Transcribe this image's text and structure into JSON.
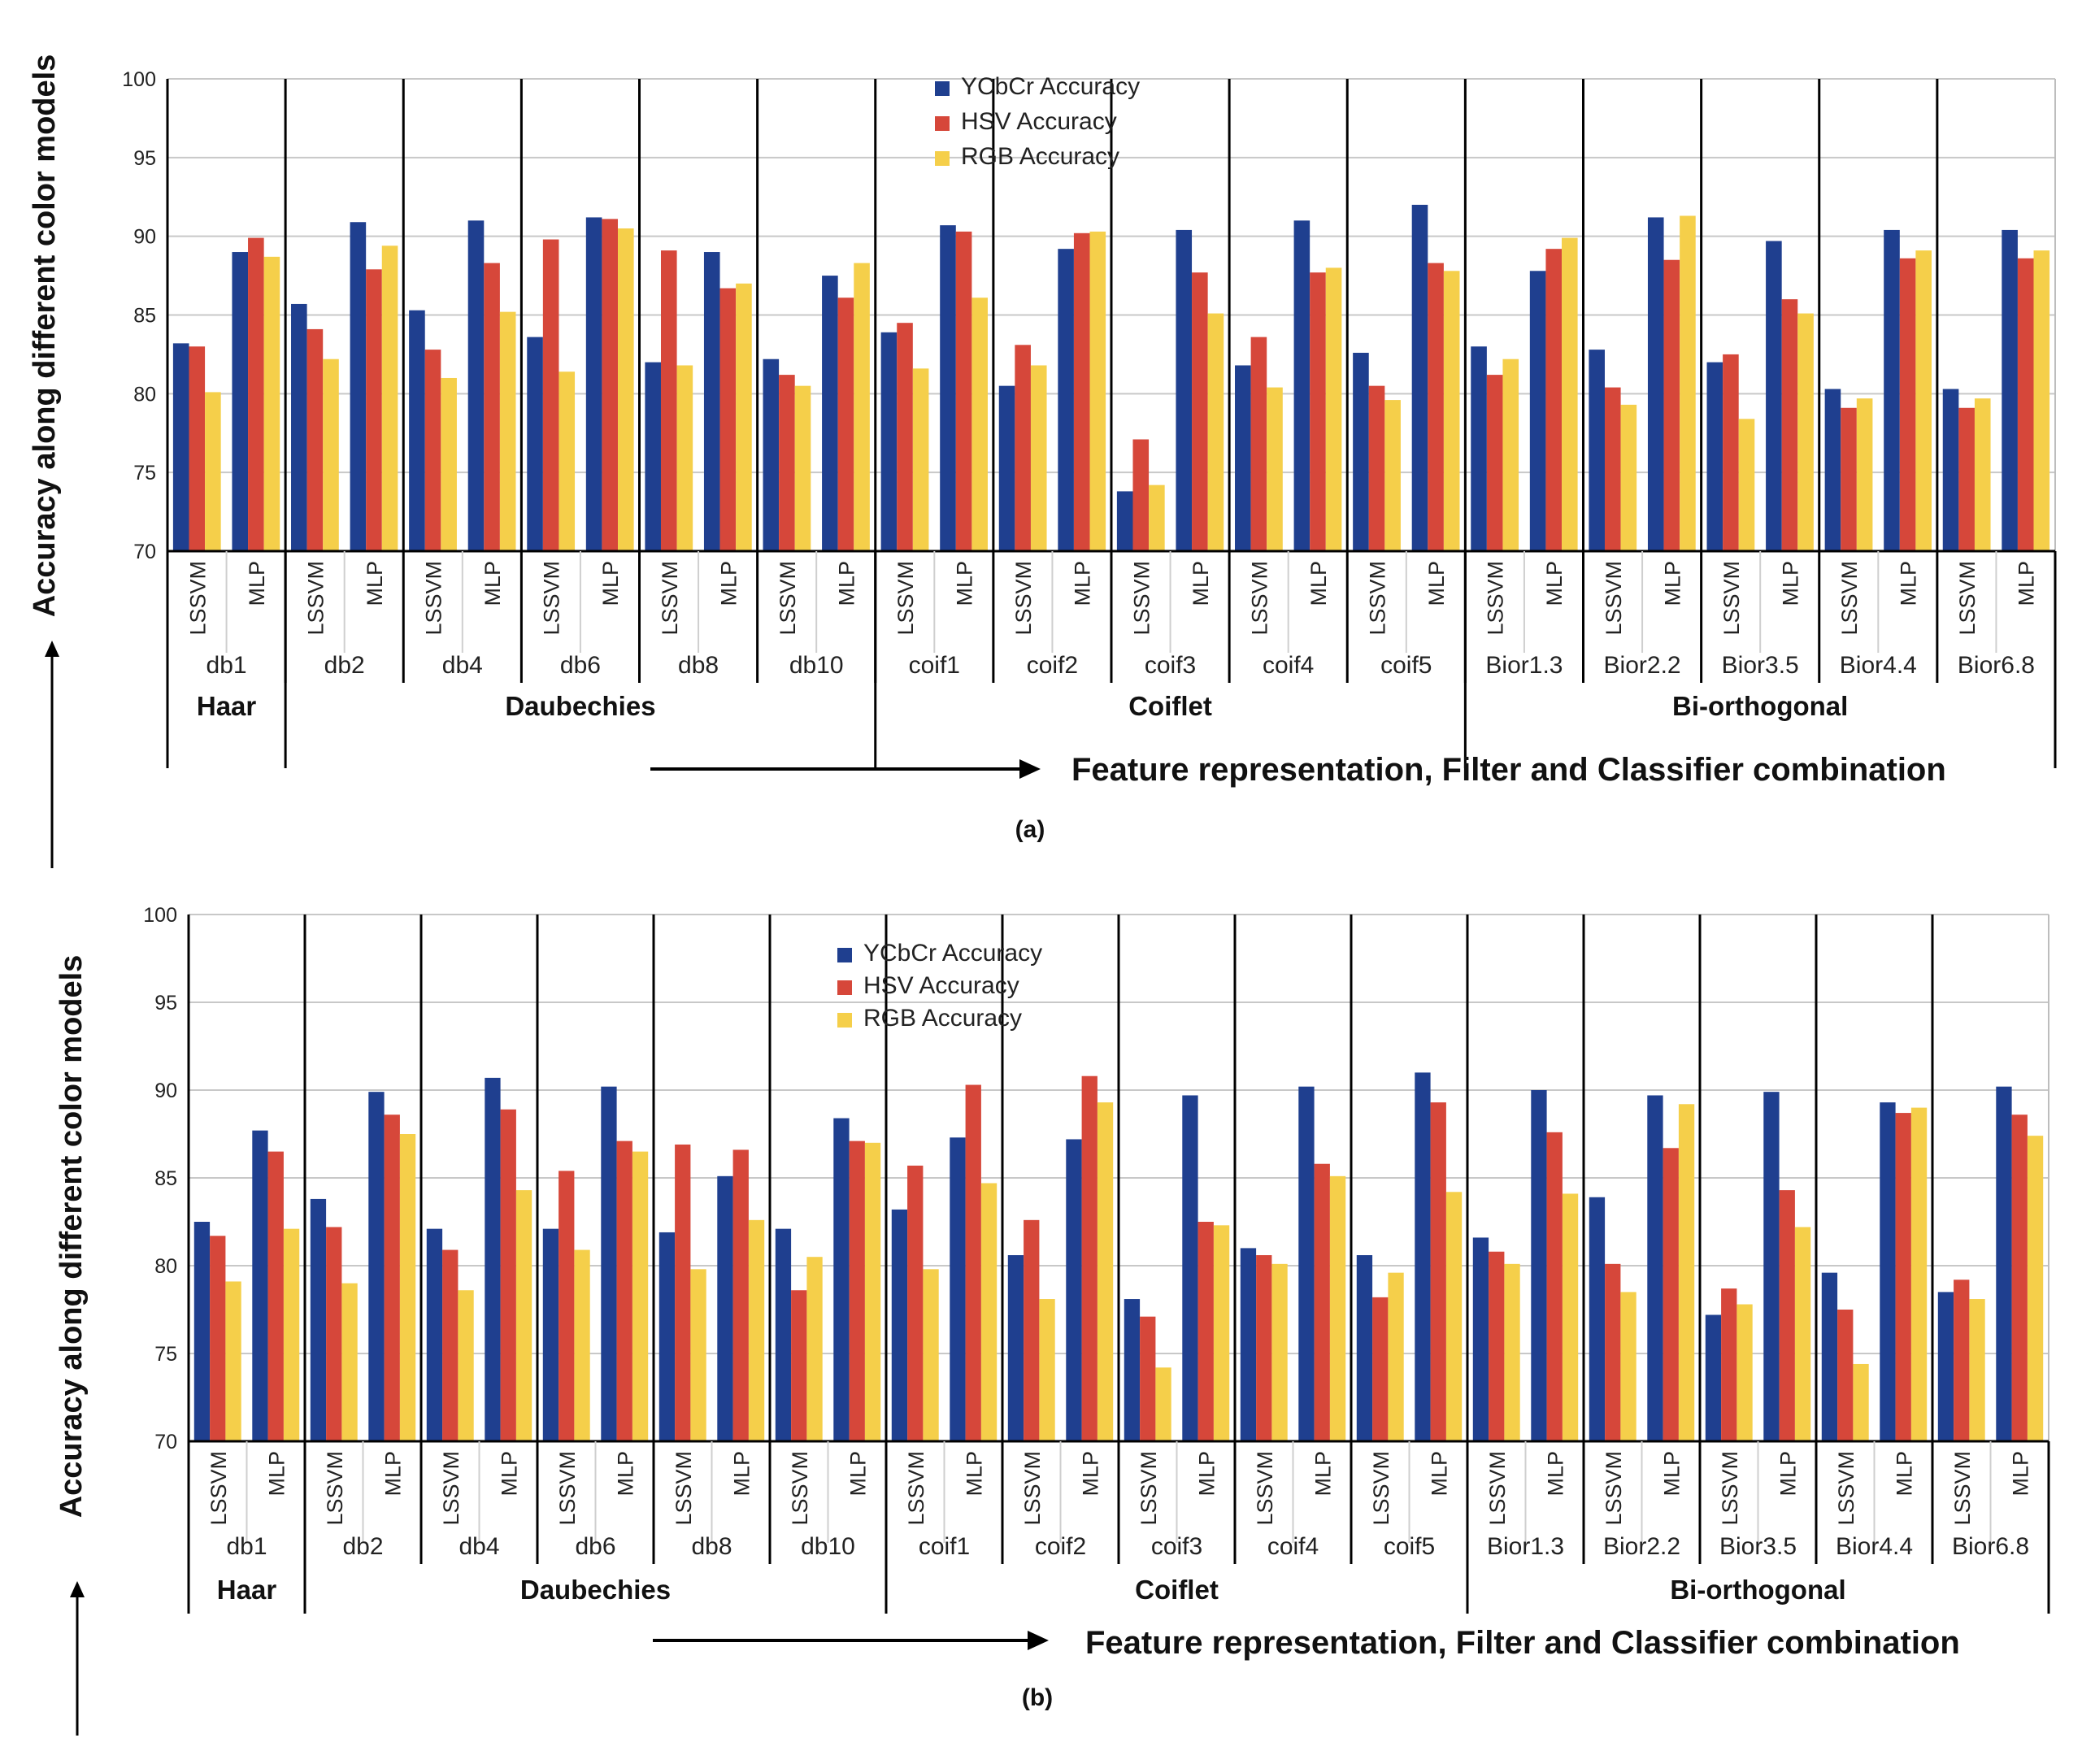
{
  "figure_label": "accuracy-comparison",
  "colors": {
    "YCbCr": "#1f3f8f",
    "HSV": "#d6473a",
    "RGB": "#f5cf4a",
    "grid": "#c8c8c8",
    "axis": "#000000"
  },
  "chart_data": [
    {
      "type": "bar",
      "caption": "(a)",
      "ylabel": "Accuracy along different color models",
      "xlabel": "Feature representation, Filter and Classifier combination",
      "ylim": [
        70,
        100
      ],
      "yticks": [
        70,
        75,
        80,
        85,
        90,
        95,
        100
      ],
      "legend": [
        "YCbCr Accuracy",
        "HSV Accuracy",
        "RGB Accuracy"
      ],
      "legend_position": "top-center",
      "classifiers": [
        "LSSVM",
        "MLP"
      ],
      "filters": [
        "db1",
        "db2",
        "db4",
        "db6",
        "db8",
        "db10",
        "coif1",
        "coif2",
        "coif3",
        "coif4",
        "coif5",
        "Bior1.3",
        "Bior2.2",
        "Bior3.5",
        "Bior4.4",
        "Bior6.8"
      ],
      "families": [
        {
          "name": "Haar",
          "start": 0,
          "count": 1
        },
        {
          "name": "Daubechies",
          "start": 1,
          "count": 5
        },
        {
          "name": "Coiflet",
          "start": 6,
          "count": 5
        },
        {
          "name": "Bi-orthogonal",
          "start": 11,
          "count": 5
        }
      ],
      "series": [
        {
          "name": "YCbCr Accuracy",
          "values": [
            83.2,
            89.0,
            85.7,
            90.9,
            85.3,
            91.0,
            83.6,
            91.2,
            82.0,
            89.0,
            82.2,
            87.5,
            83.9,
            90.7,
            80.5,
            89.2,
            73.8,
            90.4,
            81.8,
            91.0,
            82.6,
            92.0,
            83.0,
            87.8,
            82.8,
            91.2,
            82.0,
            89.7,
            80.3,
            90.4,
            80.3,
            90.4
          ]
        },
        {
          "name": "HSV Accuracy",
          "values": [
            83.0,
            89.9,
            84.1,
            87.9,
            82.8,
            88.3,
            89.8,
            91.1,
            89.1,
            86.7,
            81.2,
            86.1,
            84.5,
            90.3,
            83.1,
            90.2,
            77.1,
            87.7,
            83.6,
            87.7,
            80.5,
            88.3,
            81.2,
            89.2,
            80.4,
            88.5,
            82.5,
            86.0,
            79.1,
            88.6,
            79.1,
            88.6
          ]
        },
        {
          "name": "RGB Accuracy",
          "values": [
            80.1,
            88.7,
            82.2,
            89.4,
            81.0,
            85.2,
            81.4,
            90.5,
            81.8,
            87.0,
            80.5,
            88.3,
            81.6,
            86.1,
            81.8,
            90.3,
            74.2,
            85.1,
            80.4,
            88.0,
            79.6,
            87.8,
            82.2,
            89.9,
            79.3,
            91.3,
            78.4,
            85.1,
            79.7,
            89.1,
            79.7,
            89.1
          ]
        }
      ]
    },
    {
      "type": "bar",
      "caption": "(b)",
      "ylabel": "Accuracy along different color models",
      "xlabel": "Feature representation, Filter and Classifier combination",
      "ylim": [
        70,
        100
      ],
      "yticks": [
        70,
        75,
        80,
        85,
        90,
        95,
        100
      ],
      "legend": [
        "YCbCr Accuracy",
        "HSV Accuracy",
        "RGB Accuracy"
      ],
      "legend_position": "top-center",
      "classifiers": [
        "LSSVM",
        "MLP"
      ],
      "filters": [
        "db1",
        "db2",
        "db4",
        "db6",
        "db8",
        "db10",
        "coif1",
        "coif2",
        "coif3",
        "coif4",
        "coif5",
        "Bior1.3",
        "Bior2.2",
        "Bior3.5",
        "Bior4.4",
        "Bior6.8"
      ],
      "families": [
        {
          "name": "Haar",
          "start": 0,
          "count": 1
        },
        {
          "name": "Daubechies",
          "start": 1,
          "count": 5
        },
        {
          "name": "Coiflet",
          "start": 6,
          "count": 5
        },
        {
          "name": "Bi-orthogonal",
          "start": 11,
          "count": 5
        }
      ],
      "series": [
        {
          "name": "YCbCr Accuracy",
          "values": [
            82.5,
            87.7,
            83.8,
            89.9,
            82.1,
            90.7,
            82.1,
            90.2,
            81.9,
            85.1,
            82.1,
            88.4,
            83.2,
            87.3,
            80.6,
            87.2,
            78.1,
            89.7,
            81.0,
            90.2,
            80.6,
            91.0,
            81.6,
            90.0,
            83.9,
            89.7,
            77.2,
            89.9,
            79.6,
            89.3,
            78.5,
            90.2
          ]
        },
        {
          "name": "HSV Accuracy",
          "values": [
            81.7,
            86.5,
            82.2,
            88.6,
            80.9,
            88.9,
            85.4,
            87.1,
            86.9,
            86.6,
            78.6,
            87.1,
            85.7,
            90.3,
            82.6,
            90.8,
            77.1,
            82.5,
            80.6,
            85.8,
            78.2,
            89.3,
            80.8,
            87.6,
            80.1,
            86.7,
            78.7,
            84.3,
            77.5,
            88.7,
            79.2,
            88.6
          ]
        },
        {
          "name": "RGB Accuracy",
          "values": [
            79.1,
            82.1,
            79.0,
            87.5,
            78.6,
            84.3,
            80.9,
            86.5,
            79.8,
            82.6,
            80.5,
            87.0,
            79.8,
            84.7,
            78.1,
            89.3,
            74.2,
            82.3,
            80.1,
            85.1,
            79.6,
            84.2,
            80.1,
            84.1,
            78.5,
            89.2,
            77.8,
            82.2,
            74.4,
            89.0,
            78.1,
            87.4
          ]
        }
      ]
    }
  ]
}
